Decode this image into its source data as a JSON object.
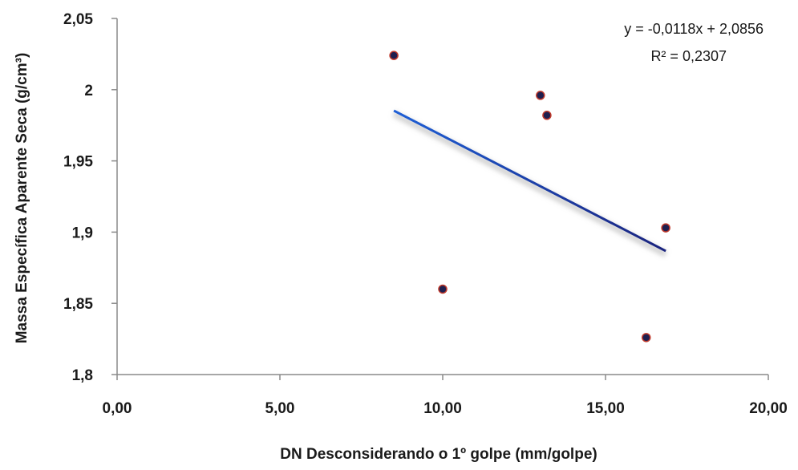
{
  "chart_data": {
    "type": "scatter",
    "xlabel": "DN Desconsiderando  o 1º golpe (mm/golpe)",
    "ylabel": "Massa Específica  Aparente Seca  (g/cm³)",
    "xlim": [
      0,
      20
    ],
    "ylim": [
      1.8,
      2.05
    ],
    "x_ticks": [
      "0,00",
      "5,00",
      "10,00",
      "15,00",
      "20,00"
    ],
    "y_ticks": [
      "1,8",
      "1,85",
      "1,9",
      "1,95",
      "2",
      "2,05"
    ],
    "points": [
      {
        "x": 8.5,
        "y": 2.024
      },
      {
        "x": 10.0,
        "y": 1.86
      },
      {
        "x": 13.0,
        "y": 1.996
      },
      {
        "x": 13.2,
        "y": 1.982
      },
      {
        "x": 16.25,
        "y": 1.826
      },
      {
        "x": 16.85,
        "y": 1.903
      }
    ],
    "trendline": {
      "type": "linear",
      "slope": -0.0118,
      "intercept": 2.0856,
      "x_start": 8.5,
      "x_end": 16.85,
      "equation": "y = -0,0118x + 2,0856",
      "r_squared": "R² = 0,2307"
    },
    "grid": false,
    "legend": "none",
    "colors": {
      "point_fill": "#1f1f4f",
      "point_edge": "#c0392b",
      "trend_start": "#1e5fd6",
      "trend_end": "#1a237e",
      "axis": "#8a8a8a"
    }
  }
}
